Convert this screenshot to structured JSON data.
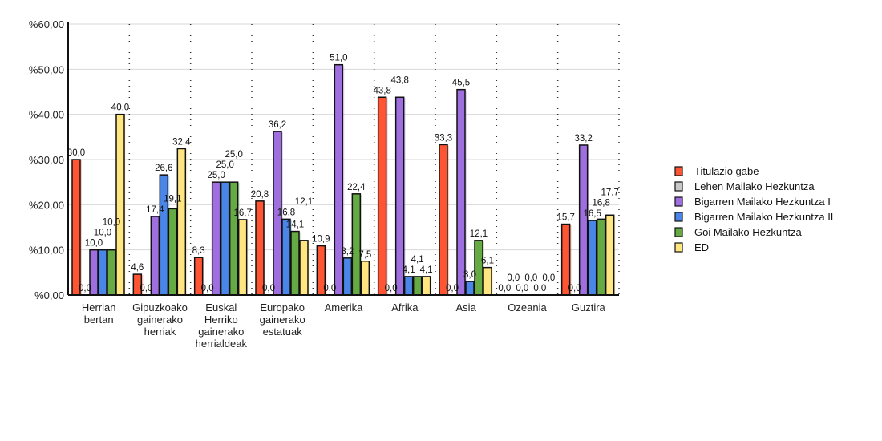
{
  "chart_data": {
    "type": "bar",
    "ylim": [
      0,
      60
    ],
    "yticks": [
      "%0,00",
      "%10,00",
      "%20,00",
      "%30,00",
      "%40,00",
      "%50,00",
      "%60,00"
    ],
    "grid": true,
    "legend_position": "right",
    "categories": [
      "Herrian bertan",
      "Gipuzkoako gainerako herriak",
      "Euskal Herriko gainerako herrialdeak",
      "Europako gainerako estatuak",
      "Amerika",
      "Afrika",
      "Asia",
      "Ozeania",
      "Guztira"
    ],
    "series": [
      {
        "name": "Titulazio gabe",
        "color": "#ff5533",
        "values": [
          30.0,
          4.6,
          8.3,
          20.8,
          10.9,
          43.8,
          33.3,
          0.0,
          15.7
        ]
      },
      {
        "name": "Lehen Mailako Hezkuntza",
        "color": "#c8c8c8",
        "values": [
          0.0,
          0.0,
          0.0,
          0.0,
          0.0,
          0.0,
          0.0,
          0.0,
          0.0
        ]
      },
      {
        "name": "Bigarren Mailako Hezkuntza I",
        "color": "#9f6fe0",
        "values": [
          10.0,
          17.4,
          25.0,
          36.2,
          51.0,
          43.8,
          45.5,
          0.0,
          33.2
        ]
      },
      {
        "name": "Bigarren Mailako Hezkuntza II",
        "color": "#4a86e8",
        "values": [
          10.0,
          26.6,
          25.0,
          16.8,
          8.2,
          4.1,
          3.0,
          0.0,
          16.5
        ]
      },
      {
        "name": "Goi Mailako Hezkuntza",
        "color": "#66aa44",
        "values": [
          10.0,
          19.1,
          25.0,
          14.1,
          22.4,
          4.1,
          12.1,
          0.0,
          16.8
        ]
      },
      {
        "name": "ED",
        "color": "#ffe680",
        "values": [
          40.0,
          32.4,
          16.7,
          12.1,
          7.5,
          4.1,
          6.1,
          0.0,
          17.7
        ]
      }
    ]
  }
}
